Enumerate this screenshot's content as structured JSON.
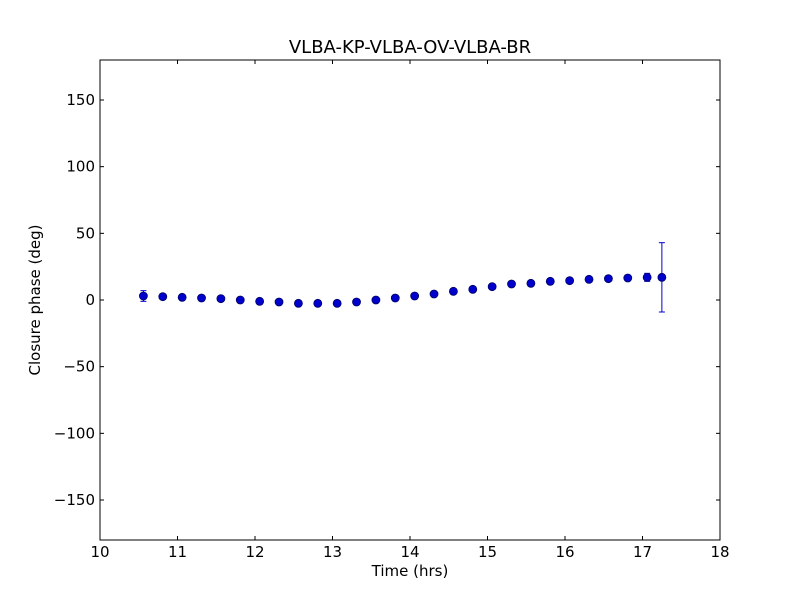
{
  "chart_data": {
    "type": "scatter",
    "title": "VLBA-KP-VLBA-OV-VLBA-BR",
    "xlabel": "Time (hrs)",
    "ylabel": "Closure phase (deg)",
    "xlim": [
      10,
      18
    ],
    "ylim": [
      -180,
      180
    ],
    "xticks": [
      10,
      11,
      12,
      13,
      14,
      15,
      16,
      17,
      18
    ],
    "yticks": [
      -150,
      -100,
      -50,
      0,
      50,
      100,
      150
    ],
    "xtick_labels": [
      "10",
      "11",
      "12",
      "13",
      "14",
      "15",
      "16",
      "17",
      "18"
    ],
    "ytick_labels": [
      "−150",
      "−100",
      "−50",
      "0",
      "50",
      "100",
      "150"
    ],
    "grid": false,
    "colors": {
      "marker": "#0000cc",
      "marker_edge": "#000066",
      "errorbar": "#0000cc"
    },
    "series": [
      {
        "x": [
          10.56,
          10.81,
          11.06,
          11.31,
          11.56,
          11.81,
          12.06,
          12.31,
          12.56,
          12.81,
          13.06,
          13.31,
          13.56,
          13.81,
          14.06,
          14.31,
          14.56,
          14.81,
          15.06,
          15.31,
          15.56,
          15.81,
          16.06,
          16.31,
          16.56,
          16.81,
          17.06,
          17.25
        ],
        "y": [
          3,
          2.5,
          2,
          1.5,
          1,
          0,
          -1,
          -1.5,
          -2.5,
          -2.5,
          -2.5,
          -1.5,
          0,
          1.5,
          3,
          4.5,
          6.5,
          8,
          10,
          12,
          12.5,
          14,
          14.5,
          15.5,
          16,
          16.5,
          17,
          17
        ],
        "yerr": [
          4,
          2,
          2,
          2,
          2,
          2,
          2,
          2,
          2,
          2,
          2,
          2,
          2,
          2,
          2,
          2,
          2,
          2,
          2,
          2,
          2,
          2,
          2,
          2,
          2,
          2,
          3,
          26
        ]
      }
    ]
  }
}
